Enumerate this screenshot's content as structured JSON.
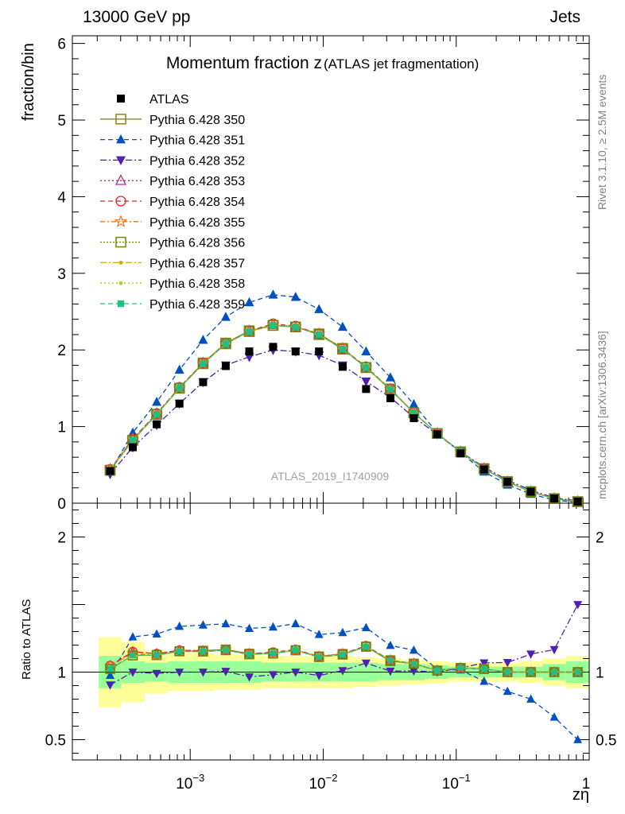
{
  "header": {
    "left": "13000 GeV pp",
    "right": "Jets"
  },
  "side_labels": {
    "rivet": "Rivet 3.1.10, ≥ 2.5M events",
    "mcplots": "mcplots.cern.ch [arXiv:1306.3436]"
  },
  "chart_data": {
    "type": "line",
    "title_main": "Momentum fraction z",
    "title_sub": "(ATLAS jet fragmentation)",
    "watermark": "ATLAS_2019_I1740909",
    "xlabel": "zη",
    "ylabel": "fraction/bin",
    "ratio_ylabel": "Ratio to ATLAS",
    "xscale": "log",
    "xlim": [
      0.00013,
      1.0
    ],
    "ylim": [
      0,
      6.1
    ],
    "ratio_ylim": [
      0.35,
      2.25
    ],
    "x_ticklabels": [
      {
        "x": 0.001,
        "base": "10",
        "exp": "−3"
      },
      {
        "x": 0.01,
        "base": "10",
        "exp": "−2"
      },
      {
        "x": 0.1,
        "base": "10",
        "exp": "−1"
      },
      {
        "x": 1,
        "base": "1",
        "exp": ""
      }
    ],
    "y_ticks": [
      0,
      1,
      2,
      3,
      4,
      5,
      6
    ],
    "ratio_y_ticks": [
      {
        "v": 0.5,
        "label": "0.5"
      },
      {
        "v": 1,
        "label": "1"
      },
      {
        "v": 2,
        "label": "2"
      }
    ],
    "x": [
      0.00025,
      0.00037,
      0.00056,
      0.00083,
      0.00125,
      0.00185,
      0.00278,
      0.0042,
      0.0062,
      0.0093,
      0.014,
      0.021,
      0.032,
      0.048,
      0.072,
      0.108,
      0.162,
      0.243,
      0.364,
      0.546,
      0.82
    ],
    "data": {
      "name": "ATLAS",
      "values": [
        0.42,
        0.73,
        1.03,
        1.3,
        1.58,
        1.79,
        1.98,
        2.04,
        1.98,
        1.98,
        1.78,
        1.49,
        1.37,
        1.11,
        0.9,
        0.65,
        0.44,
        0.28,
        0.15,
        0.06,
        0.02
      ]
    },
    "bands": {
      "inner_color": "#99ff99",
      "outer_color": "#ffff99",
      "inner": [
        0.12,
        0.08,
        0.07,
        0.08,
        0.08,
        0.08,
        0.08,
        0.07,
        0.07,
        0.07,
        0.07,
        0.07,
        0.06,
        0.06,
        0.05,
        0.04,
        0.04,
        0.04,
        0.04,
        0.06,
        0.08
      ],
      "outer": [
        0.26,
        0.22,
        0.16,
        0.14,
        0.14,
        0.13,
        0.13,
        0.12,
        0.12,
        0.12,
        0.12,
        0.11,
        0.1,
        0.09,
        0.08,
        0.07,
        0.07,
        0.07,
        0.08,
        0.1,
        0.12
      ]
    },
    "series": [
      {
        "name": "Pythia 6.428 350",
        "color": "#8a8a00",
        "dash": "",
        "marker": "open-square",
        "values": [
          0.43,
          0.82,
          1.16,
          1.5,
          1.83,
          2.09,
          2.25,
          2.32,
          2.3,
          2.21,
          2.02,
          1.77,
          1.48,
          1.18,
          0.91,
          0.67,
          0.45,
          0.28,
          0.15,
          0.06,
          0.02
        ]
      },
      {
        "name": "Pythia 6.428 351",
        "color": "#0050c0",
        "dash": "6,4",
        "marker": "filled-triangle-up",
        "values": [
          0.41,
          0.92,
          1.32,
          1.74,
          2.13,
          2.43,
          2.62,
          2.72,
          2.69,
          2.53,
          2.3,
          1.98,
          1.64,
          1.29,
          0.92,
          0.66,
          0.41,
          0.24,
          0.12,
          0.04,
          0.01
        ]
      },
      {
        "name": "Pythia 6.428 352",
        "color": "#5020b0",
        "dash": "8,3,2,3",
        "marker": "filled-triangle-down",
        "values": [
          0.38,
          0.73,
          1.02,
          1.3,
          1.58,
          1.8,
          1.91,
          2.0,
          1.98,
          1.93,
          1.8,
          1.59,
          1.38,
          1.12,
          0.9,
          0.67,
          0.47,
          0.3,
          0.17,
          0.07,
          0.03
        ]
      },
      {
        "name": "Pythia 6.428 353",
        "color": "#c0208a",
        "dash": "2,3",
        "marker": "open-triangle-up",
        "values": [
          0.44,
          0.84,
          1.17,
          1.51,
          1.83,
          2.08,
          2.25,
          2.33,
          2.3,
          2.21,
          2.02,
          1.77,
          1.49,
          1.18,
          0.91,
          0.67,
          0.45,
          0.28,
          0.15,
          0.06,
          0.02
        ]
      },
      {
        "name": "Pythia 6.428 354",
        "color": "#e02020",
        "dash": "6,4",
        "marker": "open-circle",
        "values": [
          0.44,
          0.84,
          1.17,
          1.51,
          1.83,
          2.08,
          2.25,
          2.34,
          2.31,
          2.21,
          2.02,
          1.78,
          1.49,
          1.18,
          0.91,
          0.67,
          0.45,
          0.28,
          0.15,
          0.06,
          0.02
        ]
      },
      {
        "name": "Pythia 6.428 355",
        "color": "#f07020",
        "dash": "6,3,2,3",
        "marker": "open-star",
        "values": [
          0.44,
          0.83,
          1.16,
          1.5,
          1.82,
          2.08,
          2.24,
          2.33,
          2.3,
          2.21,
          2.02,
          1.77,
          1.49,
          1.18,
          0.91,
          0.67,
          0.45,
          0.28,
          0.15,
          0.06,
          0.02
        ]
      },
      {
        "name": "Pythia 6.428 356",
        "color": "#6a8a10",
        "dash": "2,2",
        "marker": "open-square",
        "values": [
          0.43,
          0.82,
          1.16,
          1.5,
          1.82,
          2.08,
          2.24,
          2.32,
          2.3,
          2.2,
          2.01,
          1.77,
          1.49,
          1.18,
          0.91,
          0.67,
          0.45,
          0.28,
          0.15,
          0.06,
          0.02
        ]
      },
      {
        "name": "Pythia 6.428 357",
        "color": "#d0b000",
        "dash": "8,3,2,3",
        "marker": "small-dot",
        "values": [
          0.43,
          0.82,
          1.16,
          1.5,
          1.82,
          2.08,
          2.24,
          2.32,
          2.3,
          2.2,
          2.01,
          1.77,
          1.49,
          1.18,
          0.91,
          0.67,
          0.45,
          0.28,
          0.15,
          0.06,
          0.02
        ]
      },
      {
        "name": "Pythia 6.428 358",
        "color": "#b0d020",
        "dash": "2,3",
        "marker": "small-dot",
        "values": [
          0.43,
          0.82,
          1.16,
          1.5,
          1.82,
          2.08,
          2.24,
          2.32,
          2.3,
          2.2,
          2.01,
          1.77,
          1.49,
          1.18,
          0.91,
          0.67,
          0.45,
          0.28,
          0.15,
          0.06,
          0.02
        ]
      },
      {
        "name": "Pythia 6.428 359",
        "color": "#20c080",
        "dash": "6,4",
        "marker": "filled-square-small",
        "values": [
          0.43,
          0.82,
          1.16,
          1.5,
          1.82,
          2.08,
          2.24,
          2.32,
          2.3,
          2.2,
          2.01,
          1.77,
          1.49,
          1.18,
          0.91,
          0.67,
          0.45,
          0.28,
          0.15,
          0.06,
          0.02
        ]
      }
    ]
  }
}
